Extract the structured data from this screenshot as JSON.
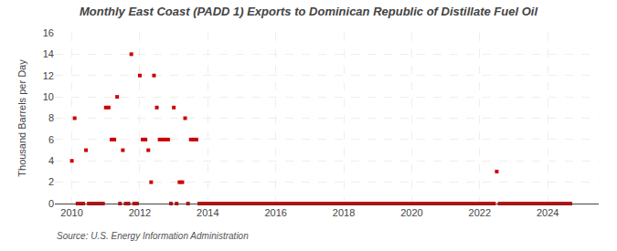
{
  "chart_data": {
    "type": "scatter",
    "title": "Monthly East Coast (PADD 1) Exports to Dominican Republic of Distillate Fuel Oil",
    "ylabel": "Thousand Barrels per Day",
    "annotations": [
      "Source: U.S. Energy Information Administration"
    ],
    "color": "#cc0000",
    "marker": "square",
    "grid": true,
    "xlim": [
      2009.5,
      2025.5
    ],
    "xticks": [
      2010,
      2012,
      2014,
      2016,
      2018,
      2020,
      2022,
      2024
    ],
    "ylim": [
      0,
      16
    ],
    "yticks": [
      0,
      2,
      4,
      6,
      8,
      10,
      12,
      14,
      16
    ],
    "x": [
      2010.0,
      2010.083,
      2010.417,
      2010.167,
      2010.25,
      2010.333,
      2010.5,
      2010.583,
      2010.667,
      2010.75,
      2010.833,
      2010.917,
      2011.0,
      2011.083,
      2011.167,
      2011.25,
      2011.333,
      2011.417,
      2011.5,
      2011.583,
      2011.667,
      2011.75,
      2011.833,
      2011.917,
      2012.0,
      2012.083,
      2012.167,
      2012.25,
      2012.333,
      2012.417,
      2012.5,
      2012.583,
      2012.667,
      2012.75,
      2012.833,
      2012.917,
      2013.0,
      2013.083,
      2013.167,
      2013.25,
      2013.333,
      2013.417,
      2013.5,
      2013.583,
      2013.667,
      2013.75,
      2013.833,
      2013.917,
      2014.0,
      2014.083,
      2014.167,
      2014.25,
      2014.333,
      2014.417,
      2014.5,
      2014.583,
      2014.667,
      2014.75,
      2014.833,
      2014.917,
      2015.0,
      2015.083,
      2015.167,
      2015.25,
      2015.333,
      2015.417,
      2015.5,
      2015.583,
      2015.667,
      2015.75,
      2015.833,
      2015.917,
      2016.0,
      2016.083,
      2016.167,
      2016.25,
      2016.333,
      2016.417,
      2016.5,
      2016.583,
      2016.667,
      2016.75,
      2016.833,
      2016.917,
      2017.0,
      2017.083,
      2017.167,
      2017.25,
      2017.333,
      2017.417,
      2017.5,
      2017.583,
      2017.667,
      2017.75,
      2017.833,
      2017.917,
      2018.0,
      2018.083,
      2018.167,
      2018.25,
      2018.333,
      2018.417,
      2018.5,
      2018.583,
      2018.667,
      2018.75,
      2018.833,
      2018.917,
      2019.0,
      2019.083,
      2019.167,
      2019.25,
      2019.333,
      2019.417,
      2019.5,
      2019.583,
      2019.667,
      2019.75,
      2019.833,
      2019.917,
      2020.0,
      2020.083,
      2020.167,
      2020.25,
      2020.333,
      2020.417,
      2020.5,
      2020.583,
      2020.667,
      2020.75,
      2020.833,
      2020.917,
      2021.0,
      2021.083,
      2021.167,
      2021.25,
      2021.333,
      2021.417,
      2021.5,
      2021.583,
      2021.667,
      2021.75,
      2021.833,
      2021.917,
      2022.0,
      2022.083,
      2022.167,
      2022.25,
      2022.333,
      2022.417,
      2022.5,
      2022.583,
      2022.667,
      2022.75,
      2022.833,
      2022.917,
      2023.0,
      2023.083,
      2023.167,
      2023.25,
      2023.333,
      2023.417,
      2023.5,
      2023.583,
      2023.667,
      2023.75,
      2023.833,
      2023.917,
      2024.0,
      2024.083,
      2024.167,
      2024.25,
      2024.333,
      2024.417,
      2024.5,
      2024.583,
      2024.667
    ],
    "values": [
      4.0,
      8.0,
      5.0,
      0.0,
      0.0,
      0.0,
      0.0,
      0.0,
      0.0,
      0.0,
      0.0,
      0.0,
      9.0,
      9.0,
      6.0,
      6.0,
      10.0,
      0.0,
      5.0,
      0.0,
      0.0,
      14.0,
      0.0,
      0.0,
      12.0,
      6.0,
      6.0,
      5.0,
      2.0,
      12.0,
      9.0,
      6.0,
      6.0,
      6.0,
      6.0,
      0.0,
      9.0,
      0.0,
      2.0,
      2.0,
      8.0,
      0.0,
      6.0,
      6.0,
      6.0,
      0.0,
      0.0,
      0.0,
      0.0,
      0.0,
      0.0,
      0.0,
      0.0,
      0.0,
      0.0,
      0.0,
      0.0,
      0.0,
      0.0,
      0.0,
      0.0,
      0.0,
      0.0,
      0.0,
      0.0,
      0.0,
      0.0,
      0.0,
      0.0,
      0.0,
      0.0,
      0.0,
      0.0,
      0.0,
      0.0,
      0.0,
      0.0,
      0.0,
      0.0,
      0.0,
      0.0,
      0.0,
      0.0,
      0.0,
      0.0,
      0.0,
      0.0,
      0.0,
      0.0,
      0.0,
      0.0,
      0.0,
      0.0,
      0.0,
      0.0,
      0.0,
      0.0,
      0.0,
      0.0,
      0.0,
      0.0,
      0.0,
      0.0,
      0.0,
      0.0,
      0.0,
      0.0,
      0.0,
      0.0,
      0.0,
      0.0,
      0.0,
      0.0,
      0.0,
      0.0,
      0.0,
      0.0,
      0.0,
      0.0,
      0.0,
      0.0,
      0.0,
      0.0,
      0.0,
      0.0,
      0.0,
      0.0,
      0.0,
      0.0,
      0.0,
      0.0,
      0.0,
      0.0,
      0.0,
      0.0,
      0.0,
      0.0,
      0.0,
      0.0,
      0.0,
      0.0,
      0.0,
      0.0,
      0.0,
      0.0,
      0.0,
      0.0,
      0.0,
      0.0,
      0.0,
      3.0,
      0.0,
      0.0,
      0.0,
      0.0,
      0.0,
      0.0,
      0.0,
      0.0,
      0.0,
      0.0,
      0.0,
      0.0,
      0.0,
      0.0,
      0.0,
      0.0,
      0.0,
      0.0,
      0.0,
      0.0,
      0.0,
      0.0,
      0.0,
      0.0,
      0.0,
      0.0
    ]
  }
}
